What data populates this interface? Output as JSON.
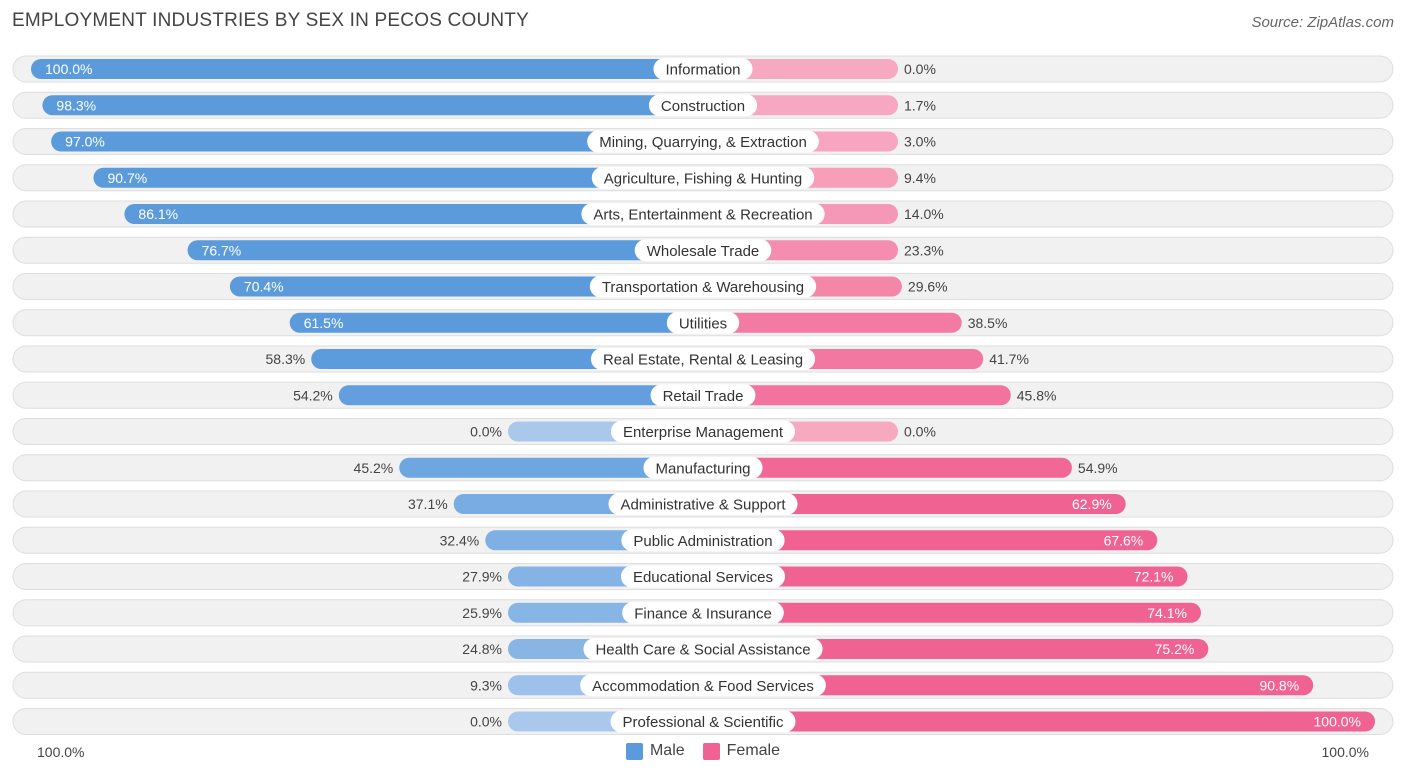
{
  "title": "EMPLOYMENT INDUSTRIES BY SEX IN PECOS COUNTY",
  "source": "Source: ZipAtlas.com",
  "axis_left_label": "100.0%",
  "axis_right_label": "100.0%",
  "legend": {
    "male_label": "Male",
    "female_label": "Female"
  },
  "colors": {
    "male_strong": "#5b9bdc",
    "male_light": "#a9c8ec",
    "female_strong": "#f06292",
    "female_light": "#f7a9c2",
    "row_bg": "#f1f1f1",
    "row_border": "#dedede"
  },
  "chart_data": {
    "type": "bar",
    "orientation": "horizontal-diverging",
    "title": "EMPLOYMENT INDUSTRIES BY SEX IN PECOS COUNTY",
    "xlim": [
      -100,
      100
    ],
    "categories": [
      "Information",
      "Construction",
      "Mining, Quarrying, & Extraction",
      "Agriculture, Fishing & Hunting",
      "Arts, Entertainment & Recreation",
      "Wholesale Trade",
      "Transportation & Warehousing",
      "Utilities",
      "Real Estate, Rental & Leasing",
      "Retail Trade",
      "Enterprise Management",
      "Manufacturing",
      "Administrative & Support",
      "Public Administration",
      "Educational Services",
      "Finance & Insurance",
      "Health Care & Social Assistance",
      "Accommodation & Food Services",
      "Professional & Scientific"
    ],
    "series": [
      {
        "name": "Male",
        "values": [
          100.0,
          98.3,
          97.0,
          90.7,
          86.1,
          76.7,
          70.4,
          61.5,
          58.3,
          54.2,
          0.0,
          45.2,
          37.1,
          32.4,
          27.9,
          25.9,
          24.8,
          9.3,
          0.0
        ]
      },
      {
        "name": "Female",
        "values": [
          0.0,
          1.7,
          3.0,
          9.4,
          14.0,
          23.3,
          29.6,
          38.5,
          41.7,
          45.8,
          0.0,
          54.9,
          62.9,
          67.6,
          72.1,
          74.1,
          75.2,
          90.8,
          100.0
        ]
      }
    ],
    "value_labels": {
      "male": [
        "100.0%",
        "98.3%",
        "97.0%",
        "90.7%",
        "86.1%",
        "76.7%",
        "70.4%",
        "61.5%",
        "58.3%",
        "54.2%",
        "0.0%",
        "45.2%",
        "37.1%",
        "32.4%",
        "27.9%",
        "25.9%",
        "24.8%",
        "9.3%",
        "0.0%"
      ],
      "female": [
        "0.0%",
        "1.7%",
        "3.0%",
        "9.4%",
        "14.0%",
        "23.3%",
        "29.6%",
        "38.5%",
        "41.7%",
        "45.8%",
        "0.0%",
        "54.9%",
        "62.9%",
        "67.6%",
        "72.1%",
        "74.1%",
        "75.2%",
        "90.8%",
        "100.0%"
      ]
    },
    "legend_position": "bottom-center"
  }
}
